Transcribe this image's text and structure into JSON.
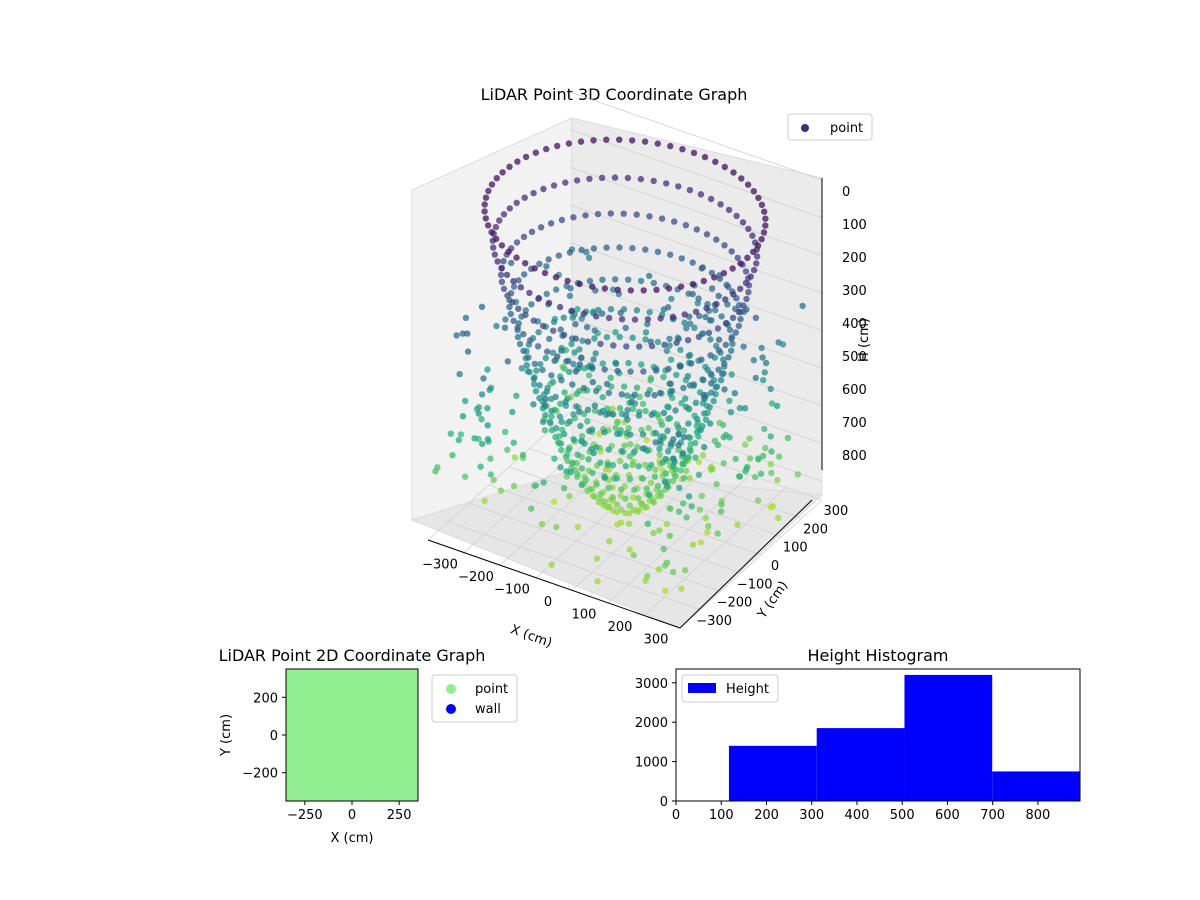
{
  "chart_data": [
    {
      "type": "scatter",
      "projection": "3d",
      "title": "LiDAR Point 3D Coordinate Graph",
      "xlabel": "X (cm)",
      "ylabel": "Y (cm)",
      "zlabel": "H (cm)",
      "x_ticks": [
        "−300",
        "−200",
        "−100",
        "0",
        "100",
        "200",
        "300"
      ],
      "y_ticks": [
        "−300",
        "−200",
        "−100",
        "0",
        "100",
        "200",
        "300"
      ],
      "z_ticks": [
        "0",
        "100",
        "200",
        "300",
        "400",
        "500",
        "600",
        "700",
        "800"
      ],
      "xlim": [
        -350,
        350
      ],
      "ylim": [
        -350,
        350
      ],
      "zlim": [
        0,
        850
      ],
      "z_inverted": true,
      "grid": true,
      "colormap": "viridis",
      "surface": "bowl of points, height increasing with distance from center",
      "series": [
        {
          "name": "point",
          "color": "#3b2f7a"
        }
      ],
      "legend": {
        "position": "top-right",
        "entries": [
          {
            "label": "point",
            "color": "#3b2f7a"
          }
        ]
      }
    },
    {
      "type": "scatter",
      "title": "LiDAR Point 2D Coordinate Graph",
      "xlabel": "X (cm)",
      "ylabel": "Y (cm)",
      "x_ticks": [
        "−250",
        "0",
        "250"
      ],
      "y_ticks": [
        "200",
        "0",
        "−200"
      ],
      "xlim": [
        -350,
        350
      ],
      "ylim": [
        -350,
        350
      ],
      "fill_color": "#90ee90",
      "series": [
        {
          "name": "point",
          "color": "#90ee90"
        },
        {
          "name": "wall",
          "color": "#0000ff"
        }
      ],
      "legend": {
        "position": "outside-right",
        "entries": [
          {
            "label": "point",
            "color": "#90ee90"
          },
          {
            "label": "wall",
            "color": "#0000ff"
          }
        ]
      }
    },
    {
      "type": "bar",
      "title": "Height Histogram",
      "xlabel": "",
      "ylabel": "",
      "bin_edges": [
        117,
        311,
        505,
        699,
        893
      ],
      "values": [
        1400,
        1850,
        3200,
        750
      ],
      "xlim": [
        0,
        893
      ],
      "ylim": [
        0,
        3350
      ],
      "x_ticks": [
        "0",
        "100",
        "200",
        "300",
        "400",
        "500",
        "600",
        "700",
        "800"
      ],
      "y_ticks": [
        "0",
        "1000",
        "2000",
        "3000"
      ],
      "color": "#0000ff",
      "series": [
        {
          "name": "Height",
          "color": "#0000ff"
        }
      ],
      "legend": {
        "position": "top-left",
        "entries": [
          {
            "label": "Height",
            "color": "#0000ff"
          }
        ]
      }
    }
  ]
}
